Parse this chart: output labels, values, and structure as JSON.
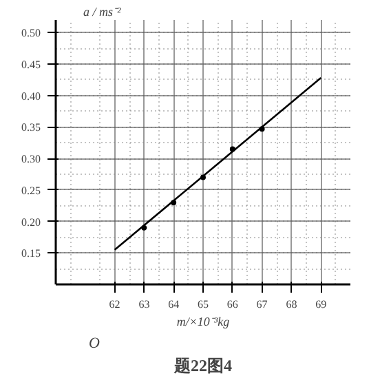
{
  "chart_data": {
    "type": "scatter",
    "xlabel": "m/×10⁻³kg",
    "ylabel": "a / ms⁻²",
    "annotations": [
      "O",
      "题22图4"
    ],
    "series": [
      {
        "type": "line",
        "color": "#000000",
        "x": [
          62,
          69
        ],
        "values": [
          0.155,
          0.428
        ],
        "marker": "none"
      },
      {
        "color": "#000000",
        "x": [
          63,
          64,
          65,
          66,
          67
        ],
        "values": [
          0.19,
          0.23,
          0.27,
          0.315,
          0.347
        ],
        "marker": "circle"
      }
    ],
    "xlim": [
      60,
      70
    ],
    "ylim": [
      0.1,
      0.52
    ],
    "xticks": [
      62,
      63,
      64,
      65,
      66,
      67,
      68,
      69
    ],
    "yticks": [
      {
        "value": 0.15,
        "label": "0.15"
      },
      {
        "value": 0.2,
        "label": "0.20"
      },
      {
        "value": 0.25,
        "label": "0.25"
      },
      {
        "value": 0.3,
        "label": "0.30"
      },
      {
        "value": 0.35,
        "label": "0.35"
      },
      {
        "value": 0.4,
        "label": "0.40"
      },
      {
        "value": 0.45,
        "label": "0.45"
      },
      {
        "value": 0.5,
        "label": "0.50"
      }
    ],
    "grid": true
  }
}
